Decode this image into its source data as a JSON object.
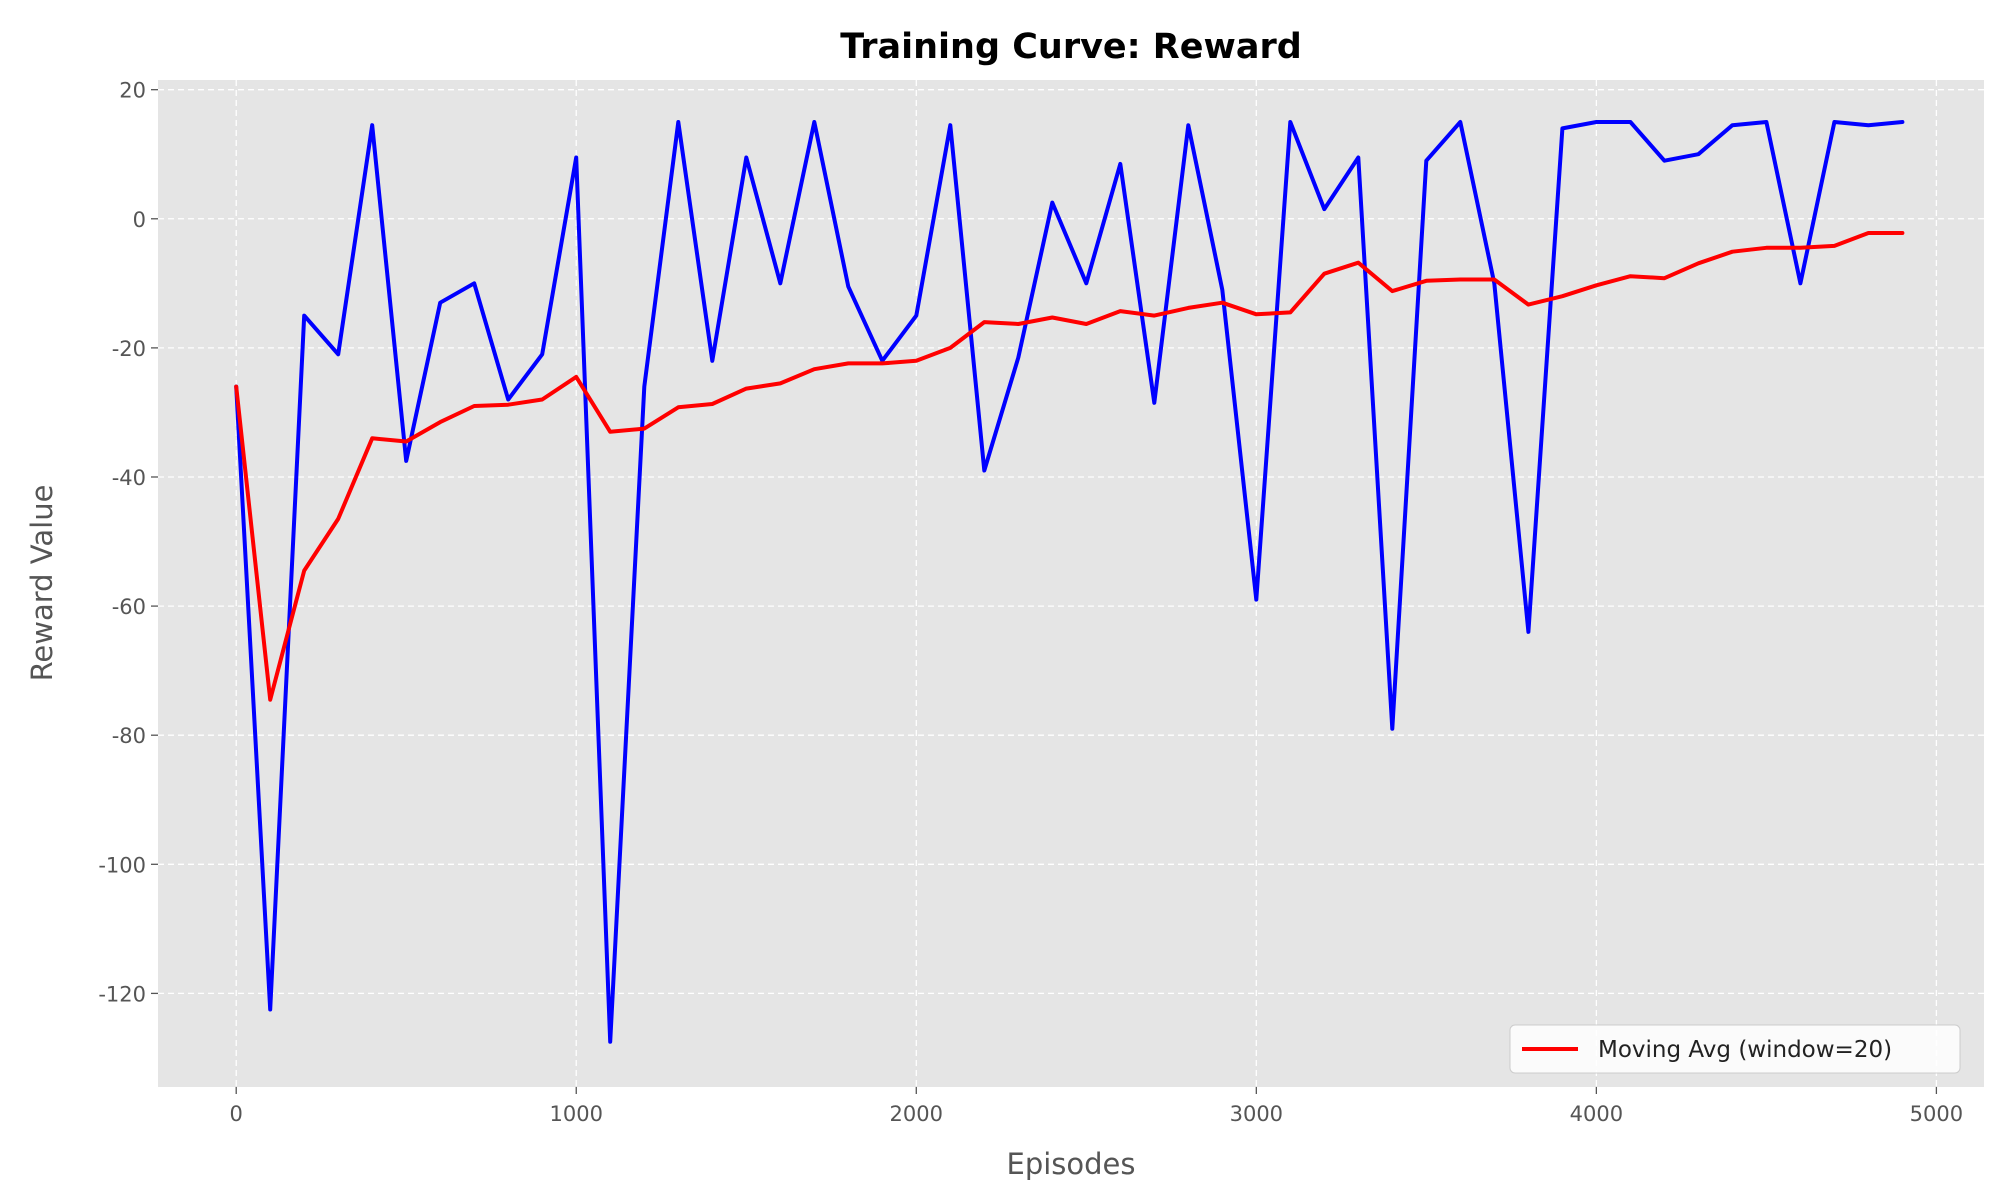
{
  "chart_data": {
    "type": "line",
    "title": "Training Curve: Reward",
    "xlabel": "Episodes",
    "ylabel": "Reward Value",
    "xlim": [
      -230,
      5140
    ],
    "ylim": [
      -134.5,
      21.5
    ],
    "xticks": [
      0,
      1000,
      2000,
      3000,
      4000,
      5000
    ],
    "yticks": [
      -120,
      -100,
      -80,
      -60,
      -40,
      -20,
      0,
      20
    ],
    "grid": true,
    "legend_placement": "lower-right",
    "background_color": "#e5e5e5",
    "series": [
      {
        "color": "#0000ff",
        "x": [
          0,
          100,
          200,
          300,
          400,
          500,
          600,
          700,
          800,
          900,
          1000,
          1100,
          1200,
          1300,
          1400,
          1500,
          1600,
          1700,
          1800,
          1900,
          2000,
          2100,
          2200,
          2300,
          2400,
          2500,
          2600,
          2700,
          2800,
          2900,
          3000,
          3100,
          3200,
          3300,
          3400,
          3500,
          3600,
          3700,
          3800,
          3900,
          4000,
          4100,
          4200,
          4300,
          4400,
          4500,
          4600,
          4700,
          4800,
          4900
        ],
        "y": [
          -26,
          -122.5,
          -15,
          -21,
          14.5,
          -37.5,
          -13,
          -10,
          -28,
          -21,
          9.5,
          -127.5,
          -26,
          15,
          -22,
          9.5,
          -10,
          15,
          -10.5,
          -22,
          -15,
          14.5,
          -39,
          -21.5,
          2.5,
          -10,
          8.5,
          -28.5,
          14.5,
          -11,
          -59,
          15,
          1.5,
          9.5,
          -79,
          9,
          15,
          -10,
          -64,
          14,
          15,
          15,
          9,
          10,
          14.5,
          15,
          -10,
          15,
          14.5,
          15
        ]
      },
      {
        "name": "Moving Avg (window=20)",
        "color": "#ff0000",
        "x": [
          0,
          100,
          200,
          300,
          400,
          500,
          600,
          700,
          800,
          900,
          1000,
          1100,
          1200,
          1300,
          1400,
          1500,
          1600,
          1700,
          1800,
          1900,
          2000,
          2100,
          2200,
          2300,
          2400,
          2500,
          2600,
          2700,
          2800,
          2900,
          3000,
          3100,
          3200,
          3300,
          3400,
          3500,
          3600,
          3700,
          3800,
          3900,
          4000,
          4100,
          4200,
          4300,
          4400,
          4500,
          4600,
          4700,
          4800,
          4900
        ],
        "y": [
          -26,
          -74.5,
          -54.5,
          -46.5,
          -34,
          -34.5,
          -31.5,
          -29,
          -28.8,
          -28,
          -24.5,
          -33,
          -32.5,
          -29.2,
          -28.7,
          -26.3,
          -25.5,
          -23.3,
          -22.4,
          -22.4,
          -22,
          -20,
          -16,
          -16.3,
          -15.3,
          -16.3,
          -14.3,
          -15,
          -13.8,
          -13,
          -14.8,
          -14.5,
          -8.5,
          -6.8,
          -11.2,
          -9.6,
          -9.4,
          -9.4,
          -13.3,
          -12,
          -10.3,
          -8.9,
          -9.2,
          -6.9,
          -5.1,
          -4.5,
          -4.5,
          -4.2,
          -2.2,
          -2.2
        ]
      }
    ]
  }
}
